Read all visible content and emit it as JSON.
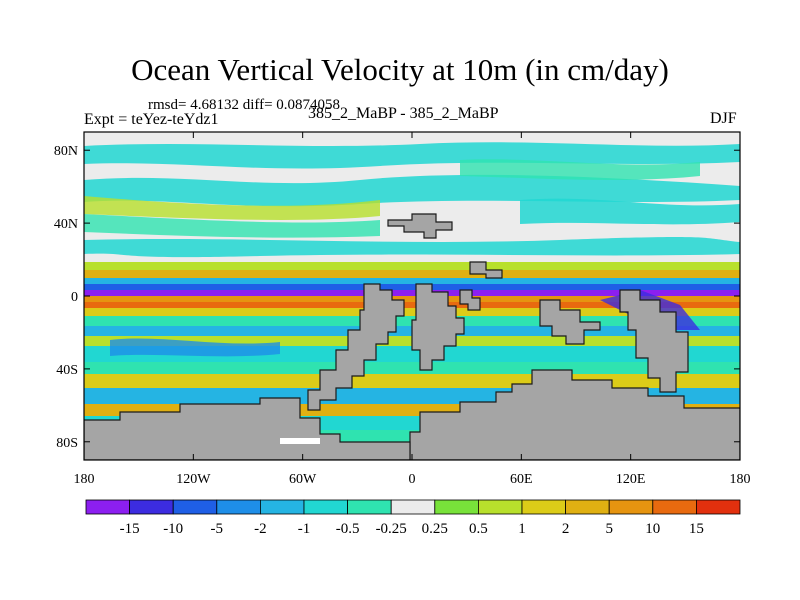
{
  "title": "Ocean Vertical Velocity at 10m (in cm/day)",
  "stats_text": "rmsd= 4.68132  diff= 0.0874058",
  "experiment_label": "Expt = teYez-teYdz1",
  "subtitle": "385_2_MaBP - 385_2_MaBP",
  "season": "DJF",
  "y_ticks": [
    {
      "label": "80N",
      "lat": 80
    },
    {
      "label": "40N",
      "lat": 40
    },
    {
      "label": "0",
      "lat": 0
    },
    {
      "label": "40S",
      "lat": -40
    },
    {
      "label": "80S",
      "lat": -80
    }
  ],
  "x_ticks": [
    {
      "label": "180",
      "lon": -180
    },
    {
      "label": "120W",
      "lon": -120
    },
    {
      "label": "60W",
      "lon": -60
    },
    {
      "label": "0",
      "lon": 0
    },
    {
      "label": "60E",
      "lon": 60
    },
    {
      "label": "120E",
      "lon": 120
    },
    {
      "label": "180",
      "lon": 180
    }
  ],
  "colorbar": {
    "colors": [
      "#8c1ff0",
      "#3c2ce0",
      "#1f5fe6",
      "#1e8ee8",
      "#25b4e3",
      "#21d7d2",
      "#2fe3b0",
      "#ececec",
      "#78e23a",
      "#b8e02c",
      "#dccc18",
      "#e0b012",
      "#e69410",
      "#e86a0f",
      "#e2300e"
    ],
    "labels": [
      "-15",
      "-10",
      "-5",
      "-2",
      "-1",
      "-0.5",
      "-0.25",
      "0.25",
      "0.5",
      "1",
      "2",
      "5",
      "10",
      "15"
    ]
  },
  "land_color": "#a5a5a5",
  "background_color": "#ececec"
}
